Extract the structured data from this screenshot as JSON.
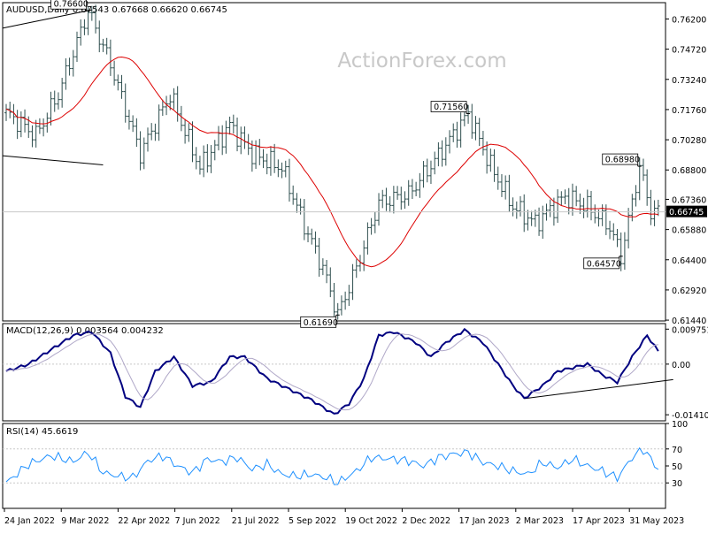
{
  "chart_data": {
    "type": "candlestick",
    "symbol_header": "AUDUSD,Daily  0.67543 0.67668 0.66620 0.66745",
    "watermark": "ActionForex.com",
    "colors": {
      "bars": "#2f4f4f",
      "ma": "#dd0000",
      "macd": "#000080",
      "signal": "#b0a8c8",
      "rsi": "#1e90ff",
      "lines": "#000000",
      "grid": "#c8c8c8"
    },
    "x_labels": [
      "24 Jan 2022",
      "9 Mar 2022",
      "22 Apr 2022",
      "7 Jun 2022",
      "21 Jul 2022",
      "5 Sep 2022",
      "19 Oct 2022",
      "2 Dec 2022",
      "17 Jan 2023",
      "2 Mar 2023",
      "17 Apr 2023",
      "31 May 2023"
    ],
    "price_axis": {
      "ticks": [
        "0.76200",
        "0.74720",
        "0.73240",
        "0.71760",
        "0.70280",
        "0.68800",
        "0.67360",
        "0.65880",
        "0.64400",
        "0.62920",
        "0.61440"
      ],
      "ylim": [
        0.614,
        0.77
      ],
      "current_price_label": "0.66745",
      "current_price": 0.66745
    },
    "price_labels": [
      {
        "text": "0.76600",
        "i": 22,
        "price": 0.766,
        "pos": "top"
      },
      {
        "text": "0.71560",
        "i": 124,
        "price": 0.7156,
        "pos": "top"
      },
      {
        "text": "0.61690",
        "i": 89,
        "price": 0.6169,
        "pos": "bottom"
      },
      {
        "text": "0.68980",
        "i": 170,
        "price": 0.6898,
        "pos": "top"
      },
      {
        "text": "0.64570",
        "i": 165,
        "price": 0.6457,
        "pos": "bottom"
      }
    ],
    "price_anchors": [
      [
        0,
        0.716
      ],
      [
        8,
        0.705
      ],
      [
        14,
        0.725
      ],
      [
        22,
        0.766
      ],
      [
        28,
        0.74
      ],
      [
        36,
        0.696
      ],
      [
        44,
        0.725
      ],
      [
        52,
        0.689
      ],
      [
        60,
        0.71
      ],
      [
        66,
        0.696
      ],
      [
        74,
        0.689
      ],
      [
        80,
        0.661
      ],
      [
        85,
        0.64
      ],
      [
        89,
        0.6169
      ],
      [
        94,
        0.64
      ],
      [
        100,
        0.672
      ],
      [
        108,
        0.676
      ],
      [
        116,
        0.695
      ],
      [
        124,
        0.7156
      ],
      [
        130,
        0.69
      ],
      [
        136,
        0.67
      ],
      [
        142,
        0.662
      ],
      [
        150,
        0.675
      ],
      [
        156,
        0.67
      ],
      [
        162,
        0.66
      ],
      [
        165,
        0.6457
      ],
      [
        170,
        0.6898
      ],
      [
        173,
        0.6675
      ]
    ],
    "series": [
      {
        "name": "AUDUSD",
        "kind": "ohlc"
      },
      {
        "kind": "moving-average"
      }
    ],
    "trendlines": [
      {
        "pane": "price",
        "from": [
          -1,
          0.7575
        ],
        "to": [
          23,
          0.7665
        ]
      },
      {
        "pane": "price",
        "from": [
          -1,
          0.695
        ],
        "to": [
          26,
          0.6905
        ]
      },
      {
        "pane": "macd",
        "from": [
          139,
          -0.0096
        ],
        "to": [
          179,
          -0.0043
        ]
      }
    ],
    "macd": {
      "label": "MACD(12,26,9) 0.003564 0.004232",
      "ticks": [
        "0.009751",
        "0.00",
        "-0.014107"
      ],
      "ylim": [
        -0.0158,
        0.0113
      ],
      "anchors": [
        [
          0,
          -0.002
        ],
        [
          6,
          0.0
        ],
        [
          12,
          0.004
        ],
        [
          18,
          0.008
        ],
        [
          23,
          0.009
        ],
        [
          28,
          0.003
        ],
        [
          32,
          -0.009
        ],
        [
          36,
          -0.012
        ],
        [
          40,
          -0.002
        ],
        [
          45,
          0.002
        ],
        [
          50,
          -0.006
        ],
        [
          55,
          -0.005
        ],
        [
          60,
          0.002
        ],
        [
          64,
          0.002
        ],
        [
          70,
          -0.004
        ],
        [
          76,
          -0.007
        ],
        [
          82,
          -0.01
        ],
        [
          88,
          -0.014
        ],
        [
          92,
          -0.011
        ],
        [
          96,
          -0.004
        ],
        [
          100,
          0.008
        ],
        [
          104,
          0.009
        ],
        [
          110,
          0.006
        ],
        [
          114,
          0.002
        ],
        [
          118,
          0.006
        ],
        [
          123,
          0.0095
        ],
        [
          128,
          0.006
        ],
        [
          132,
          0.0
        ],
        [
          136,
          -0.006
        ],
        [
          139,
          -0.0095
        ],
        [
          144,
          -0.006
        ],
        [
          148,
          -0.002
        ],
        [
          152,
          -0.001
        ],
        [
          156,
          0.0
        ],
        [
          160,
          -0.003
        ],
        [
          164,
          -0.005
        ],
        [
          168,
          0.002
        ],
        [
          172,
          0.008
        ],
        [
          175,
          0.0036
        ]
      ]
    },
    "rsi": {
      "label": "RSI(14) 45.6619",
      "ticks": [
        "100",
        "70",
        "50",
        "30"
      ],
      "ylim": [
        0,
        100
      ],
      "levels": [
        70,
        30
      ],
      "value": 45.6619,
      "anchors": [
        [
          0,
          30
        ],
        [
          6,
          52
        ],
        [
          12,
          62
        ],
        [
          18,
          55
        ],
        [
          22,
          66
        ],
        [
          26,
          42
        ],
        [
          30,
          38
        ],
        [
          34,
          36
        ],
        [
          38,
          56
        ],
        [
          42,
          62
        ],
        [
          46,
          50
        ],
        [
          50,
          42
        ],
        [
          54,
          58
        ],
        [
          58,
          55
        ],
        [
          62,
          60
        ],
        [
          66,
          46
        ],
        [
          70,
          52
        ],
        [
          74,
          40
        ],
        [
          78,
          38
        ],
        [
          82,
          40
        ],
        [
          86,
          36
        ],
        [
          89,
          30
        ],
        [
          94,
          44
        ],
        [
          98,
          60
        ],
        [
          104,
          58
        ],
        [
          108,
          56
        ],
        [
          112,
          50
        ],
        [
          116,
          60
        ],
        [
          120,
          64
        ],
        [
          124,
          66
        ],
        [
          128,
          54
        ],
        [
          132,
          50
        ],
        [
          136,
          44
        ],
        [
          140,
          40
        ],
        [
          144,
          54
        ],
        [
          148,
          48
        ],
        [
          152,
          58
        ],
        [
          156,
          50
        ],
        [
          160,
          44
        ],
        [
          164,
          36
        ],
        [
          168,
          60
        ],
        [
          171,
          70
        ],
        [
          175,
          46
        ]
      ]
    }
  }
}
